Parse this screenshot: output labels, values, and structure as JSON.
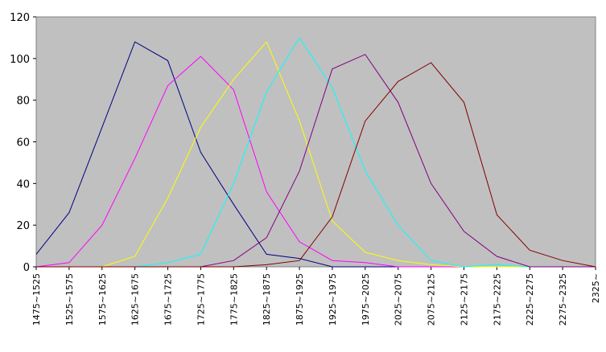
{
  "chart_data": {
    "type": "line",
    "title": "",
    "xlabel": "",
    "ylabel": "",
    "ylim": [
      0,
      120
    ],
    "yticks": [
      0,
      20,
      40,
      60,
      80,
      100,
      120
    ],
    "grid": false,
    "legend": "none",
    "background": "#c0c0c0",
    "categories": [
      "1475~1525",
      "1525~1575",
      "1575~1625",
      "1625~1675",
      "1675~1725",
      "1725~1775",
      "1775~1825",
      "1825~1875",
      "1875~1925",
      "1925~1975",
      "1975~2025",
      "2025~2075",
      "2075~2125",
      "2125~2175",
      "2175~2225",
      "2225~2275",
      "2275~2325",
      "2325~"
    ],
    "series": [
      {
        "color": "#000080",
        "values": [
          6,
          26,
          67,
          108,
          99,
          55,
          30,
          6,
          4,
          0,
          0,
          0,
          0,
          0,
          0,
          0,
          0,
          0
        ]
      },
      {
        "color": "#ff00ff",
        "values": [
          0,
          2,
          20,
          52,
          87,
          101,
          85,
          36,
          12,
          3,
          2,
          0,
          0,
          0,
          0,
          0,
          0,
          0
        ]
      },
      {
        "color": "#ffff00",
        "values": [
          0,
          0,
          0,
          5,
          33,
          67,
          90,
          108,
          70,
          22,
          7,
          3,
          1,
          0,
          0,
          0,
          0,
          0
        ]
      },
      {
        "color": "#00ffff",
        "values": [
          0,
          0,
          0,
          0,
          2,
          6,
          40,
          84,
          110,
          86,
          46,
          20,
          3,
          0,
          1,
          0,
          0,
          0
        ]
      },
      {
        "color": "#800080",
        "values": [
          0,
          0,
          0,
          0,
          0,
          0,
          3,
          14,
          46,
          95,
          102,
          79,
          40,
          17,
          5,
          0,
          0,
          0
        ]
      },
      {
        "color": "#800000",
        "values": [
          0,
          0,
          0,
          0,
          0,
          0,
          0,
          1,
          3,
          24,
          70,
          89,
          98,
          79,
          25,
          8,
          3,
          0
        ]
      }
    ]
  }
}
